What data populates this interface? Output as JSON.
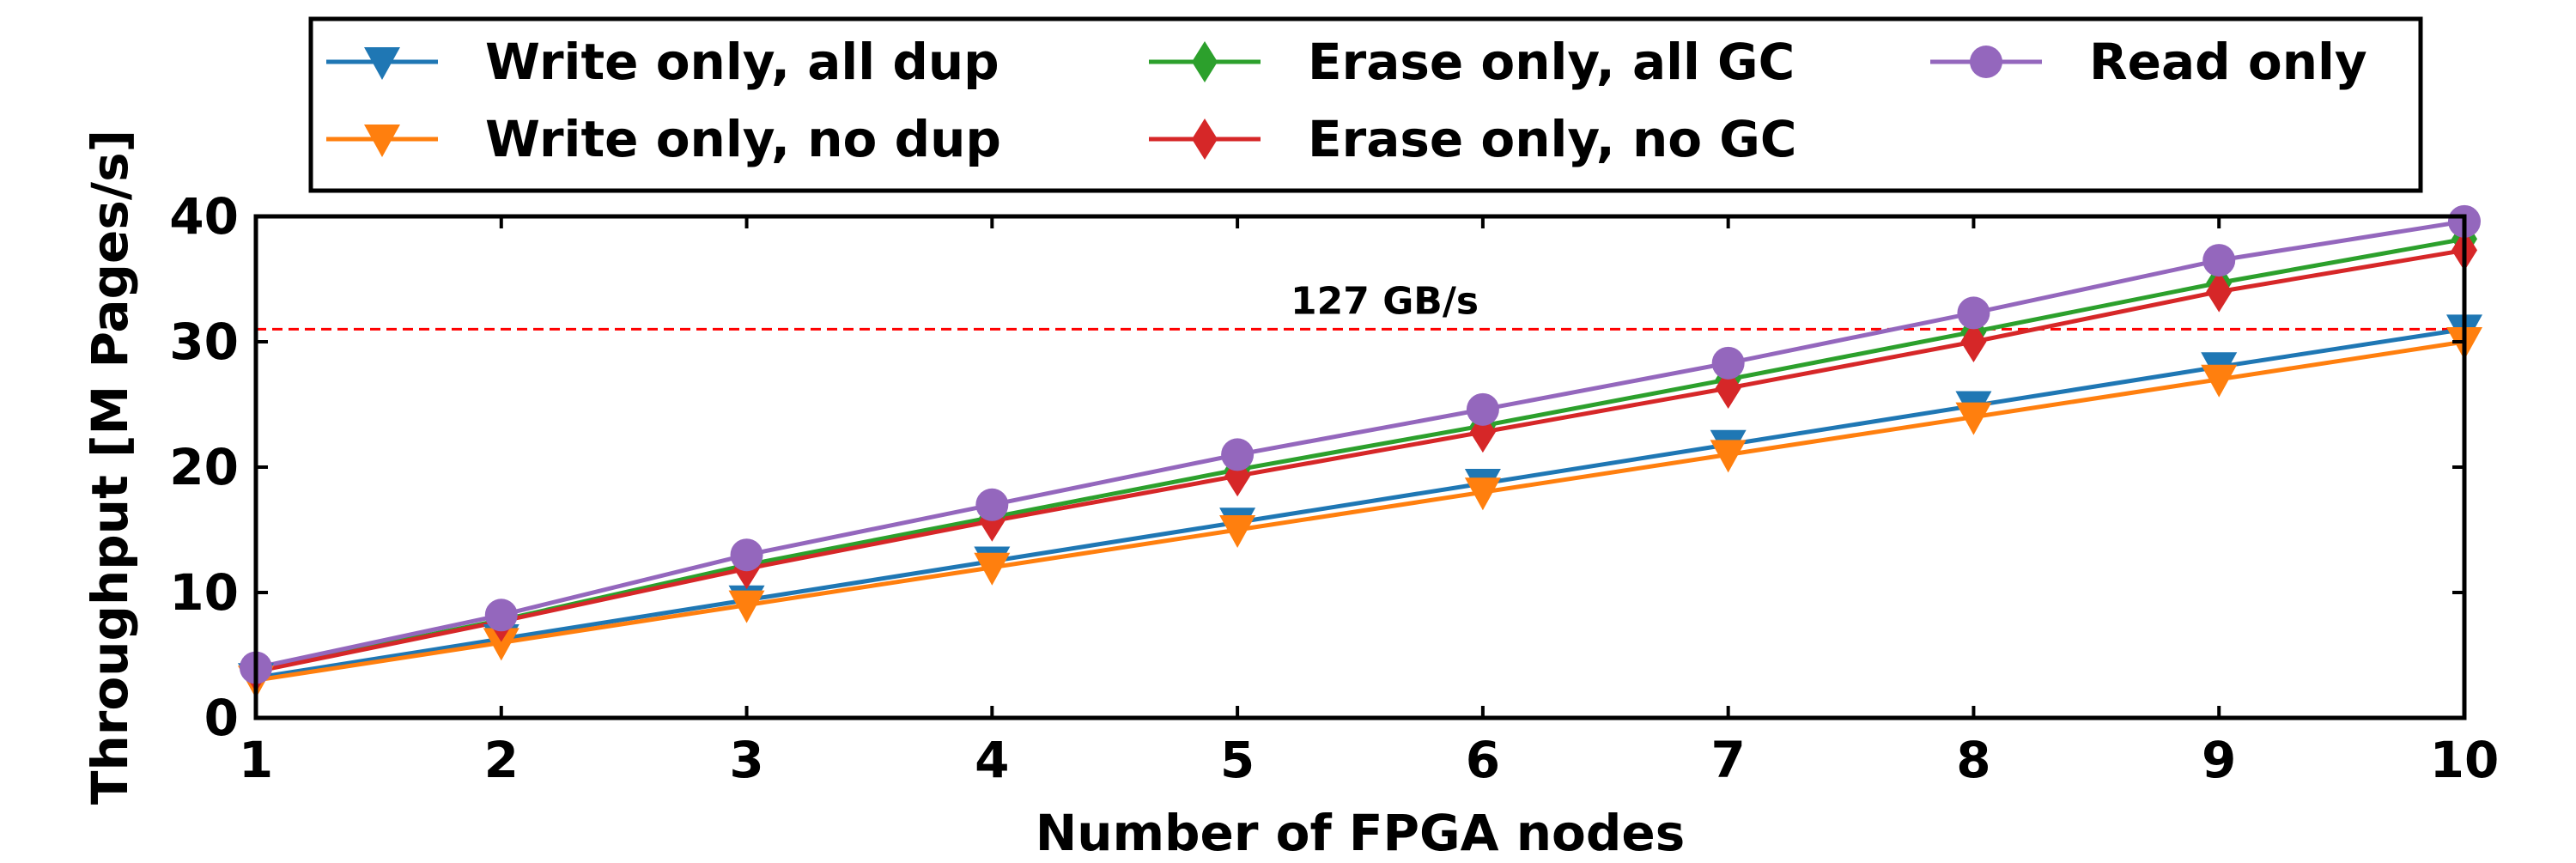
{
  "chart_data": {
    "type": "line",
    "title": "",
    "xlabel": "Number of FPGA nodes",
    "ylabel": "Throughput [M Pages/s]",
    "x": [
      1,
      2,
      3,
      4,
      5,
      6,
      7,
      8,
      9,
      10
    ],
    "xlim": [
      1,
      10
    ],
    "ylim": [
      0,
      40
    ],
    "x_ticks": [
      1,
      2,
      3,
      4,
      5,
      6,
      7,
      8,
      9,
      10
    ],
    "y_ticks": [
      0,
      10,
      20,
      30,
      40
    ],
    "grid": false,
    "legend_position": "top, above plot",
    "series": [
      {
        "name": "Write only, all dup",
        "color": "#1f77b4",
        "marker": "triangle-down",
        "values": [
          3.2,
          6.3,
          9.4,
          12.5,
          15.6,
          18.7,
          21.8,
          24.9,
          28.0,
          31.0
        ]
      },
      {
        "name": "Write only, no dup",
        "color": "#ff7f0e",
        "marker": "triangle-down",
        "values": [
          3.0,
          6.0,
          9.0,
          12.0,
          15.0,
          18.0,
          21.0,
          24.0,
          27.0,
          30.0
        ]
      },
      {
        "name": "Erase only, all GC",
        "color": "#2ca02c",
        "marker": "diamond",
        "values": [
          3.8,
          7.8,
          12.2,
          16.0,
          19.8,
          23.3,
          27.0,
          30.8,
          34.7,
          38.2
        ]
      },
      {
        "name": "Erase only, no GC",
        "color": "#d62728",
        "marker": "diamond",
        "values": [
          3.7,
          7.7,
          11.9,
          15.7,
          19.3,
          22.8,
          26.3,
          30.0,
          34.0,
          37.3
        ]
      },
      {
        "name": "Read only",
        "color": "#9467bd",
        "marker": "circle",
        "values": [
          4.0,
          8.2,
          13.0,
          17.0,
          21.0,
          24.6,
          28.3,
          32.3,
          36.5,
          39.6
        ]
      }
    ],
    "reference_line": {
      "y": 31.0,
      "label": "127 GB/s",
      "color": "#ff0000",
      "style": "dashed"
    }
  }
}
